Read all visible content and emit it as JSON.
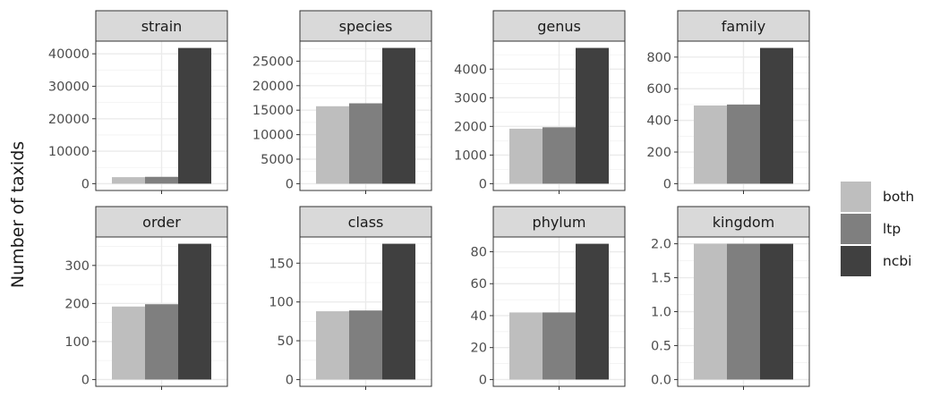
{
  "ylabel": "Number of taxids",
  "colors": {
    "both": "#bebebe",
    "ltp": "#7f7f7f",
    "ncbi": "#404040",
    "strip": "#d9d9d9",
    "grid": "#ebebeb",
    "border": "#333333",
    "text": "#4d4d4d"
  },
  "legend": {
    "items": [
      {
        "label": "both",
        "color": "#bebebe"
      },
      {
        "label": "ltp",
        "color": "#7f7f7f"
      },
      {
        "label": "ncbi",
        "color": "#404040"
      }
    ]
  },
  "chart_data": {
    "type": "bar",
    "layout": "facet-grid-2x4",
    "ylabel": "Number of taxids",
    "legend_position": "right",
    "grid": true,
    "series_names": [
      "both",
      "ltp",
      "ncbi"
    ],
    "panels": [
      {
        "title": "strain",
        "values": [
          2000,
          2100,
          41800
        ],
        "ylim": [
          -2100,
          43900
        ],
        "ticks": [
          0,
          10000,
          20000,
          30000,
          40000
        ],
        "tick_labels": [
          "0",
          "10000",
          "20000",
          "30000",
          "40000"
        ]
      },
      {
        "title": "species",
        "values": [
          15800,
          16400,
          27700
        ],
        "ylim": [
          -1385,
          29085
        ],
        "ticks": [
          0,
          5000,
          10000,
          15000,
          20000,
          25000
        ],
        "tick_labels": [
          "0",
          "5000",
          "10000",
          "15000",
          "20000",
          "25000"
        ]
      },
      {
        "title": "genus",
        "values": [
          1920,
          1970,
          4740
        ],
        "ylim": [
          -237,
          4977
        ],
        "ticks": [
          0,
          1000,
          2000,
          3000,
          4000
        ],
        "tick_labels": [
          "0",
          "1000",
          "2000",
          "3000",
          "4000"
        ]
      },
      {
        "title": "family",
        "values": [
          494,
          500,
          858
        ],
        "ylim": [
          -42.9,
          900.9
        ],
        "ticks": [
          0,
          200,
          400,
          600,
          800
        ],
        "tick_labels": [
          "0",
          "200",
          "400",
          "600",
          "800"
        ]
      },
      {
        "title": "order",
        "values": [
          192,
          198,
          357
        ],
        "ylim": [
          -17.85,
          374.85
        ],
        "ticks": [
          0,
          100,
          200,
          300
        ],
        "tick_labels": [
          "0",
          "100",
          "200",
          "300"
        ]
      },
      {
        "title": "class",
        "values": [
          88,
          89,
          175
        ],
        "ylim": [
          -8.75,
          183.75
        ],
        "ticks": [
          0,
          50,
          100,
          150
        ],
        "tick_labels": [
          "0",
          "50",
          "100",
          "150"
        ]
      },
      {
        "title": "phylum",
        "values": [
          42,
          42,
          85
        ],
        "ylim": [
          -4.25,
          89.25
        ],
        "ticks": [
          0,
          20,
          40,
          60,
          80
        ],
        "tick_labels": [
          "0",
          "20",
          "40",
          "60",
          "80"
        ]
      },
      {
        "title": "kingdom",
        "values": [
          2,
          2,
          2
        ],
        "ylim": [
          -0.1,
          2.1
        ],
        "ticks": [
          0,
          0.5,
          1.0,
          1.5,
          2.0
        ],
        "tick_labels": [
          "0.0",
          "0.5",
          "1.0",
          "1.5",
          "2.0"
        ]
      }
    ]
  }
}
